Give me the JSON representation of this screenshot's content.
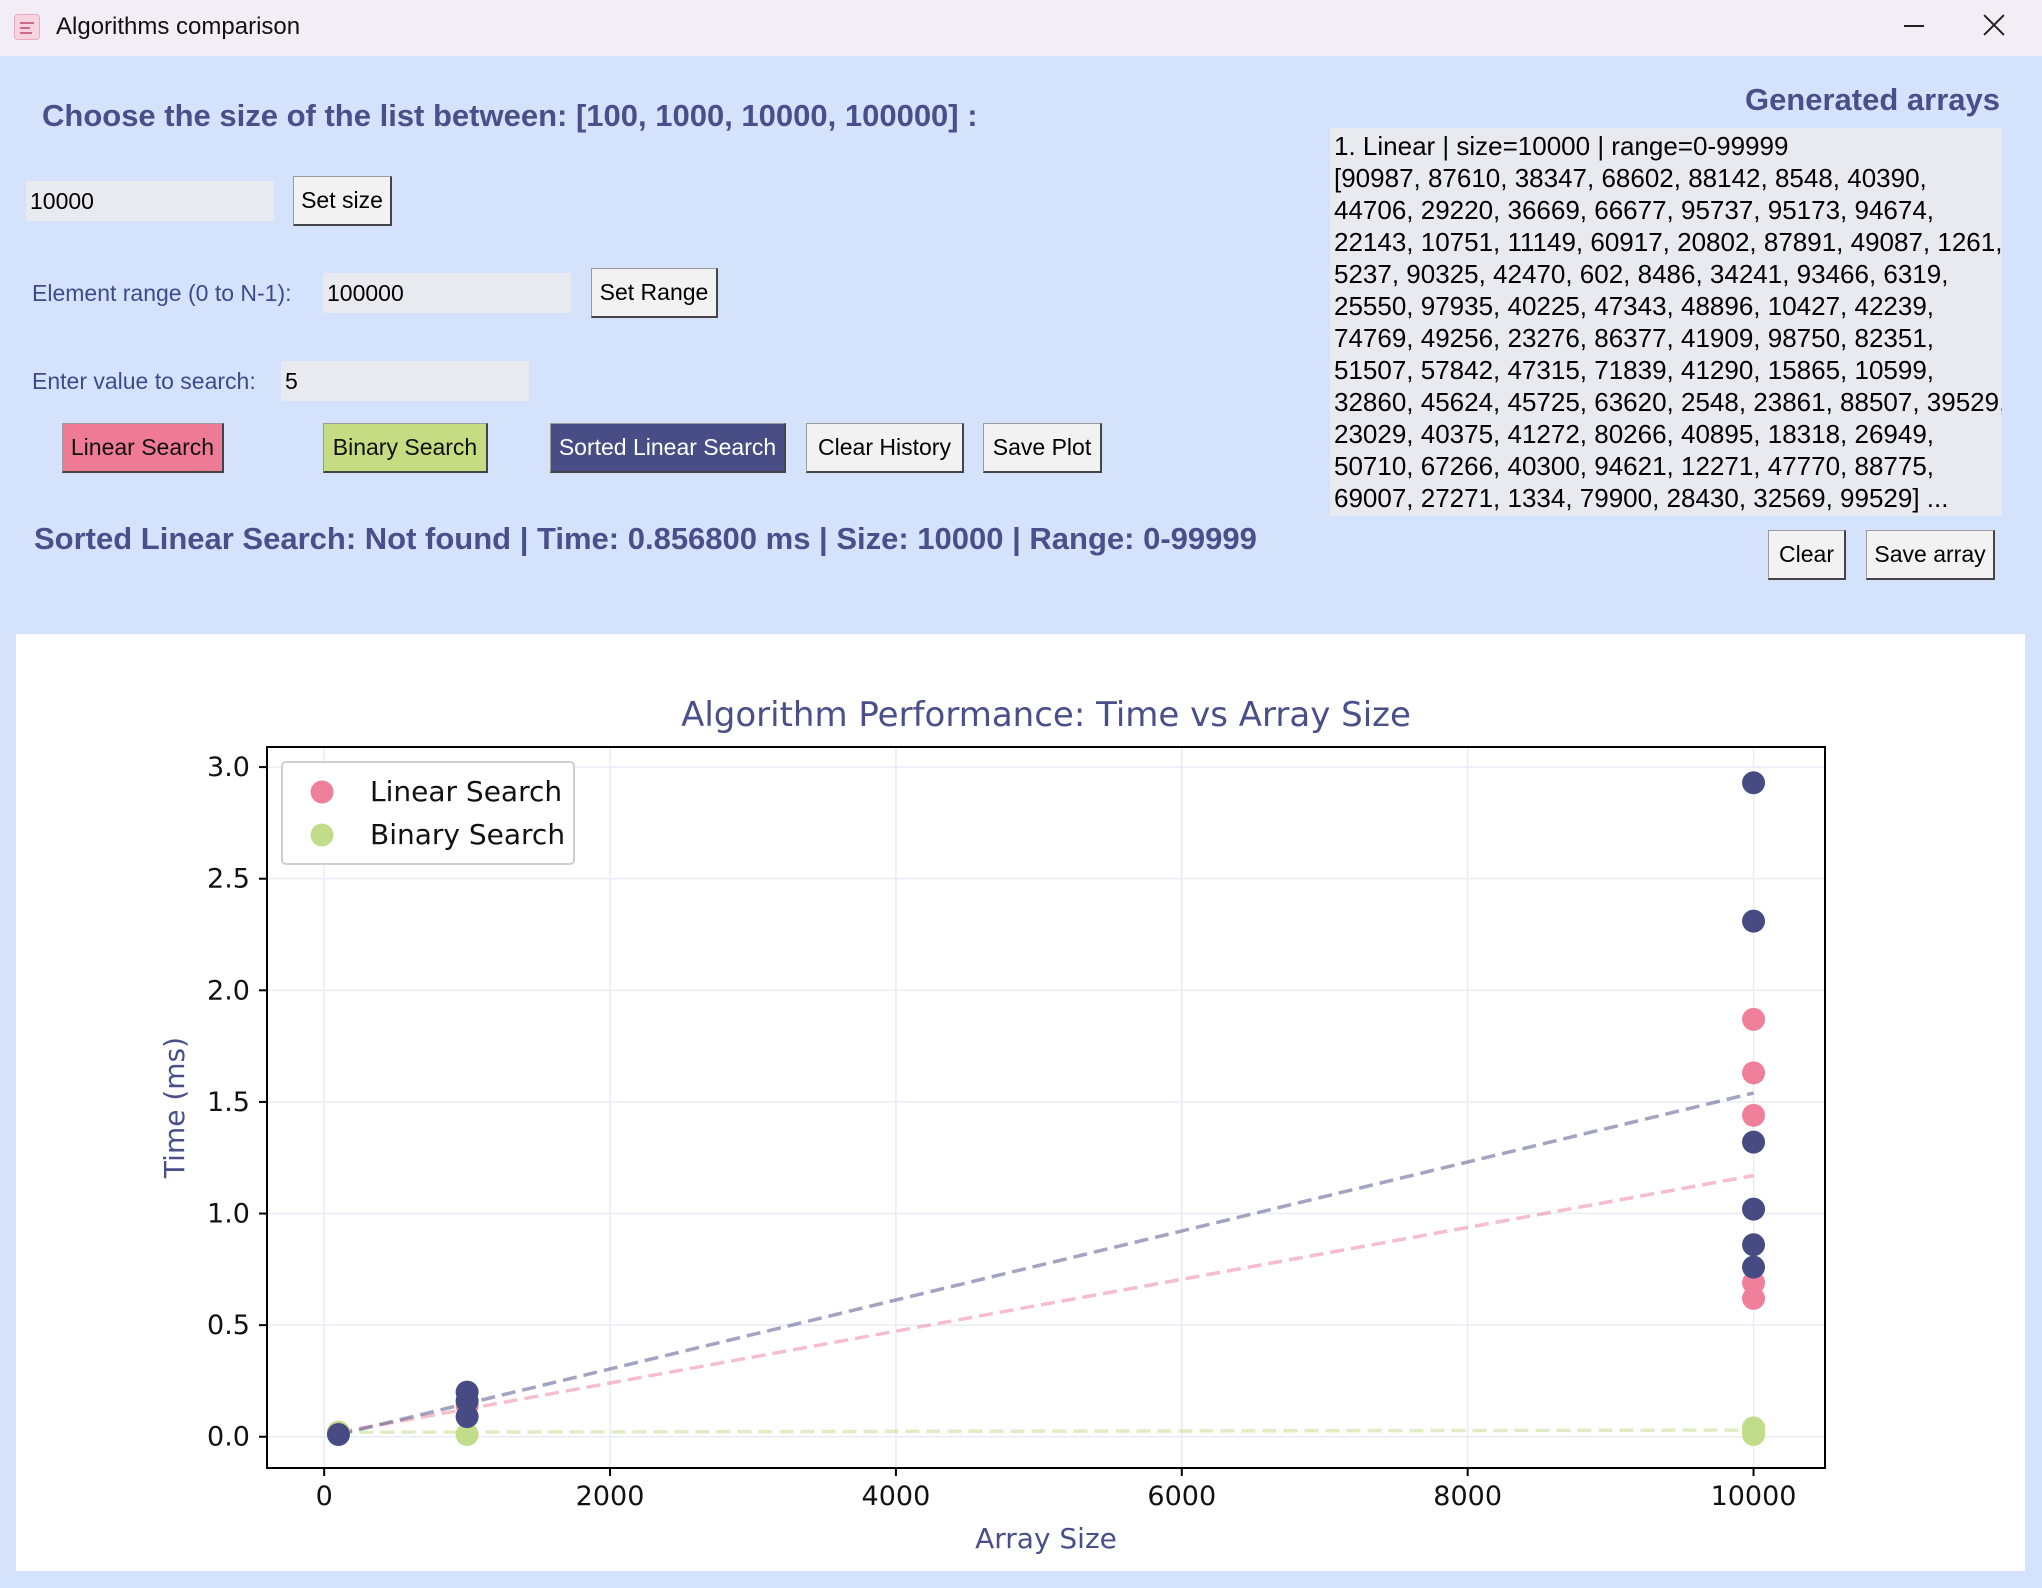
{
  "window": {
    "title": "Algorithms comparison"
  },
  "controls": {
    "heading": "Choose the size of the list between: [100, 1000, 10000, 100000] :",
    "size_value": "10000",
    "set_size_label": "Set size",
    "range_label": "Element range (0 to N-1):",
    "range_value": "100000",
    "set_range_label": "Set Range",
    "search_label": "Enter value to search:",
    "search_value": "5",
    "linear_label": "Linear Search",
    "binary_label": "Binary Search",
    "sorted_label": "Sorted Linear Search",
    "clear_history_label": "Clear History",
    "save_plot_label": "Save Plot",
    "status": "Sorted Linear Search: Not found | Time: 0.856800 ms | Size: 10000 | Range: 0-99999"
  },
  "arrays": {
    "title": "Generated arrays",
    "lines": [
      "1. Linear | size=10000 | range=0-99999",
      "[90987, 87610, 38347, 68602, 88142, 8548, 40390,",
      "44706, 29220, 36669, 66677, 95737, 95173, 94674,",
      "22143, 10751, 11149, 60917, 20802, 87891, 49087, 1261,",
      "5237, 90325, 42470, 602, 8486, 34241, 93466, 6319,",
      "25550, 97935, 40225, 47343, 48896, 10427, 42239,",
      "74769, 49256, 23276, 86377, 41909, 98750, 82351,",
      "51507, 57842, 47315, 71839, 41290, 15865, 10599,",
      "32860, 45624, 45725, 63620, 2548, 23861, 88507, 39529,",
      "23029, 40375, 41272, 80266, 40895, 18318, 26949,",
      "50710, 67266, 40300, 94621, 12271, 47770, 88775,",
      "69007, 27271, 1334, 79900, 28430, 32569, 99529] ..."
    ],
    "clear_label": "Clear",
    "save_label": "Save array"
  },
  "chart_data": {
    "type": "scatter",
    "title": "Algorithm Performance: Time vs Array Size",
    "xlabel": "Array Size",
    "ylabel": "Time (ms)",
    "xlim": [
      -400,
      10500
    ],
    "ylim": [
      -0.14,
      3.09
    ],
    "xticks": [
      0,
      2000,
      4000,
      6000,
      8000,
      10000
    ],
    "yticks": [
      0.0,
      0.5,
      1.0,
      1.5,
      2.0,
      2.5,
      3.0
    ],
    "grid": true,
    "legend_position": "upper-left",
    "series": [
      {
        "name": "Linear Search",
        "color": "#ef7f9b",
        "in_legend": true,
        "points": [
          [
            100,
            0.02
          ],
          [
            1000,
            0.14
          ],
          [
            10000,
            1.87
          ],
          [
            10000,
            1.63
          ],
          [
            10000,
            1.44
          ],
          [
            10000,
            0.69
          ],
          [
            10000,
            0.62
          ]
        ],
        "trend": [
          [
            100,
            0.02
          ],
          [
            10000,
            1.17
          ]
        ]
      },
      {
        "name": "Binary Search",
        "color": "#c2dd8a",
        "in_legend": true,
        "points": [
          [
            100,
            0.02
          ],
          [
            1000,
            0.01
          ],
          [
            10000,
            0.04
          ],
          [
            10000,
            0.02
          ],
          [
            10000,
            0.01
          ]
        ],
        "trend": [
          [
            100,
            0.02
          ],
          [
            10000,
            0.03
          ]
        ]
      },
      {
        "color": "#474b84",
        "in_legend": false,
        "points": [
          [
            100,
            0.01
          ],
          [
            1000,
            0.2
          ],
          [
            1000,
            0.16
          ],
          [
            1000,
            0.09
          ],
          [
            10000,
            2.93
          ],
          [
            10000,
            2.31
          ],
          [
            10000,
            1.32
          ],
          [
            10000,
            1.02
          ],
          [
            10000,
            0.86
          ],
          [
            10000,
            0.76
          ]
        ],
        "trend": [
          [
            100,
            0.01
          ],
          [
            10000,
            1.54
          ]
        ]
      }
    ]
  }
}
